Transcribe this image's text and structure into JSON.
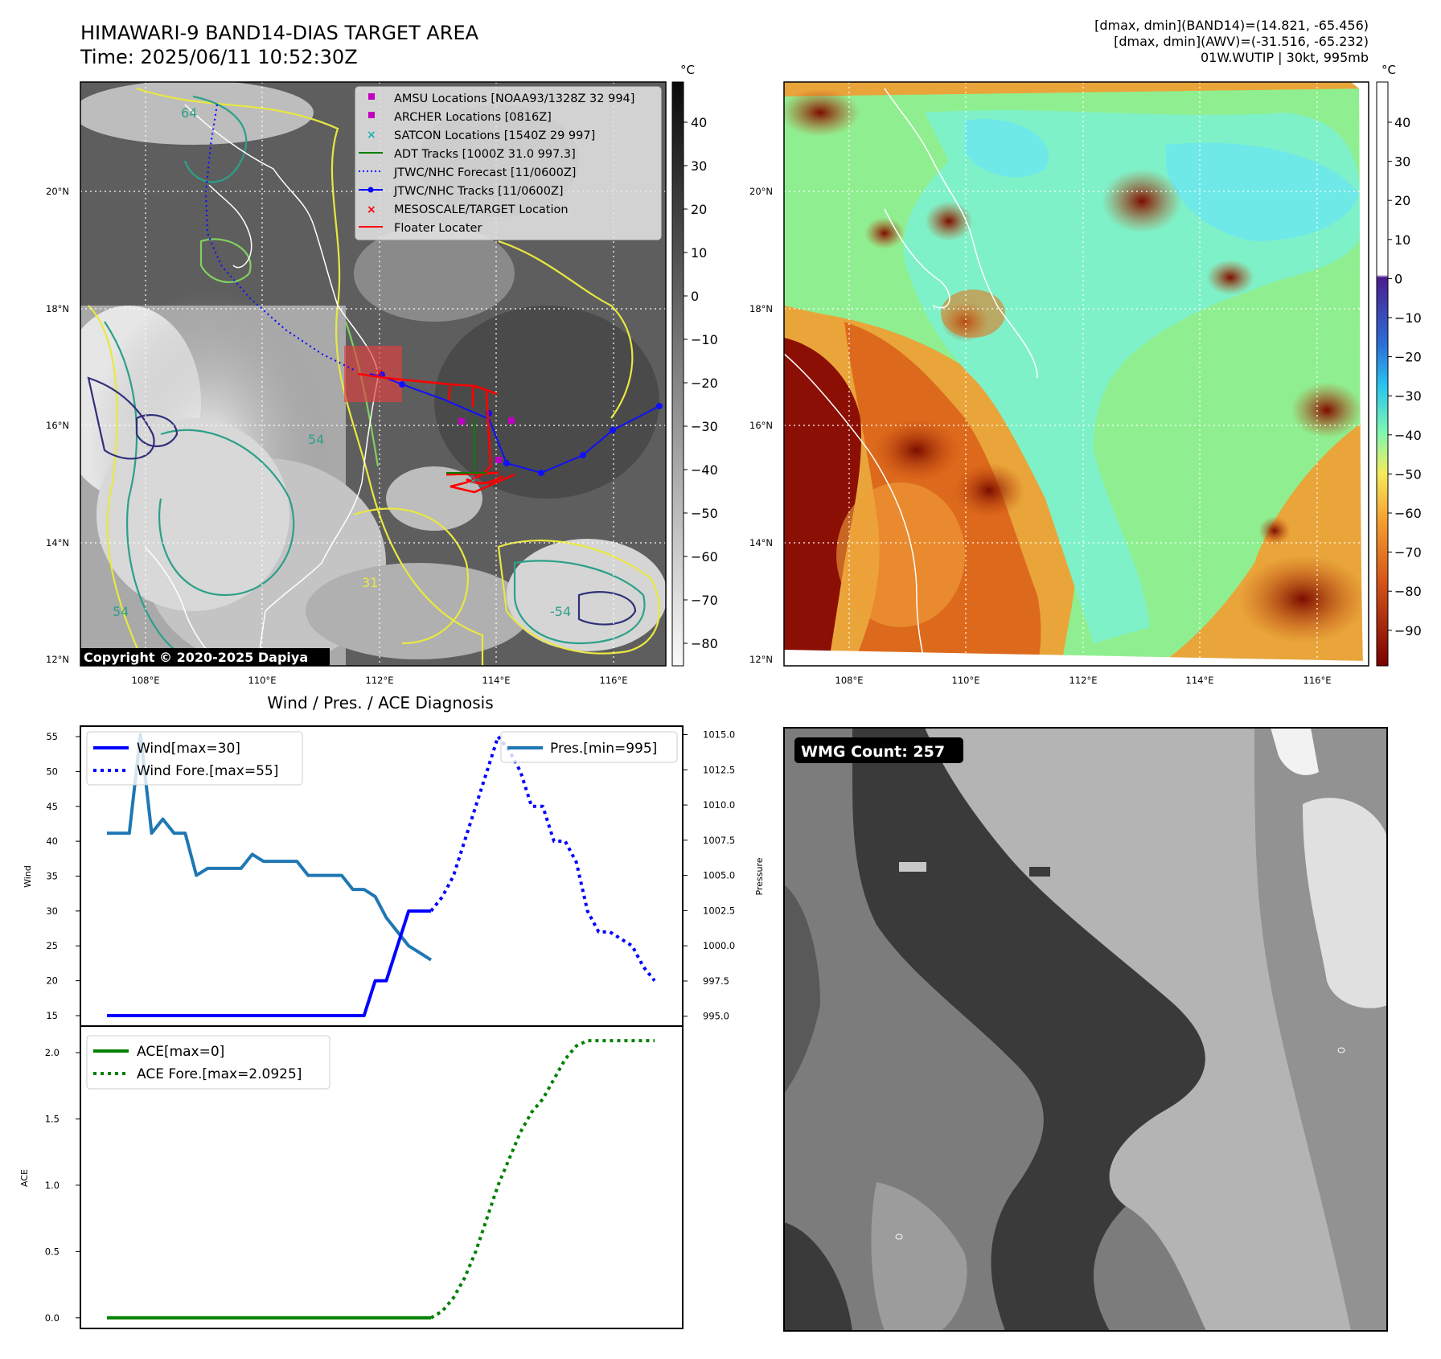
{
  "header": {
    "title_line1": "HIMAWARI-9 BAND14-DIAS TARGET AREA",
    "title_line2": "Time: 2025/06/11 10:52:30Z",
    "info_line1": "[dmax, dmin](BAND14)=(14.821, -65.456)",
    "info_line2": "[dmax, dmin](AWV)=(-31.516, -65.232)",
    "info_line3": "01W.WUTIP | 30kt, 995mb"
  },
  "map_left": {
    "lat_labels": [
      "20°N",
      "18°N",
      "16°N",
      "14°N",
      "12°N"
    ],
    "lon_labels": [
      "108°E",
      "110°E",
      "112°E",
      "114°E",
      "116°E"
    ],
    "copyright": "Copyright © 2020-2025 Dapiya",
    "contour_labels": [
      "64",
      "54",
      "31",
      "-54",
      "54"
    ],
    "legend": [
      {
        "label": "AMSU Locations [NOAA93/1328Z 32 994]",
        "color": "#c000c0",
        "marker": "square"
      },
      {
        "label": "ARCHER Locations [0816Z]",
        "color": "#c000c0",
        "marker": "square"
      },
      {
        "label": "SATCON Locations [1540Z 29 997]",
        "color": "#20b0b0",
        "marker": "x"
      },
      {
        "label": "ADT Tracks [1000Z 31.0 997.3]",
        "color": "#008000",
        "marker": "line"
      },
      {
        "label": "JTWC/NHC Forecast [11/0600Z]",
        "color": "#0000ff",
        "marker": "dotted"
      },
      {
        "label": "JTWC/NHC Tracks [11/0600Z]",
        "color": "#0000ff",
        "marker": "line-dot"
      },
      {
        "label": "MESOSCALE/TARGET Location",
        "color": "#ff0000",
        "marker": "x"
      },
      {
        "label": "Floater Locater",
        "color": "#ff0000",
        "marker": "line"
      }
    ],
    "colorbar_unit": "°C",
    "colorbar_ticks": [
      "40",
      "30",
      "20",
      "10",
      "0",
      "−10",
      "−20",
      "−30",
      "−40",
      "−50",
      "−60",
      "−70",
      "−80"
    ]
  },
  "map_right": {
    "lat_labels": [
      "20°N",
      "18°N",
      "16°N",
      "14°N",
      "12°N"
    ],
    "lon_labels": [
      "108°E",
      "110°E",
      "112°E",
      "114°E",
      "116°E"
    ],
    "colorbar_unit": "°C",
    "colorbar_ticks": [
      "40",
      "30",
      "20",
      "10",
      "0",
      "−10",
      "−20",
      "−30",
      "−40",
      "−50",
      "−60",
      "−70",
      "−80",
      "−90"
    ]
  },
  "wmg": {
    "label": "WMG Count: 257"
  },
  "chart_data": [
    {
      "type": "line",
      "title": "Wind / Pres. / ACE Diagnosis",
      "ylabel": "Wind",
      "ylabel_right": "Pressure",
      "ylim": [
        13.5,
        56.5
      ],
      "yticks": [
        15,
        20,
        25,
        30,
        35,
        40,
        45,
        50,
        55
      ],
      "ylim_right": [
        994.3,
        1015.6
      ],
      "yticks_right": [
        "995.0",
        "997.5",
        "1000.0",
        "1002.5",
        "1005.0",
        "1007.5",
        "1010.0",
        "1012.5",
        "1015.0"
      ],
      "x": [
        0,
        50
      ],
      "legend_left": [
        "Wind[max=30]",
        "Wind Fore.[max=55]"
      ],
      "legend_right": [
        "Pres.[min=995]"
      ],
      "series": [
        {
          "name": "Wind[max=30]",
          "color": "#0000ff",
          "style": "solid",
          "x": [
            0,
            1,
            2,
            3,
            4,
            5,
            6,
            7,
            8,
            9,
            10,
            11,
            12,
            13,
            14,
            15,
            16,
            17,
            18,
            19,
            20,
            21,
            22,
            23,
            24,
            25,
            26,
            27,
            28,
            29
          ],
          "values": [
            15,
            15,
            15,
            15,
            15,
            15,
            15,
            15,
            15,
            15,
            15,
            15,
            15,
            15,
            15,
            15,
            15,
            15,
            15,
            15,
            15,
            15,
            15,
            15,
            20,
            20,
            25,
            30,
            30,
            30
          ]
        },
        {
          "name": "Wind Fore.[max=55]",
          "color": "#0000ff",
          "style": "dotted",
          "x": [
            29,
            30,
            31,
            32,
            33,
            34,
            35,
            36,
            37,
            38,
            39,
            40,
            41,
            42,
            43,
            44,
            45,
            46,
            47,
            48,
            49
          ],
          "values": [
            30,
            32,
            35,
            40,
            45,
            50,
            55,
            53,
            50,
            45,
            45,
            40,
            40,
            37,
            30,
            27,
            27,
            26,
            25,
            22,
            20
          ]
        },
        {
          "name": "Pres.[min=995]",
          "color": "#1f77b4",
          "style": "solid",
          "axis": "right",
          "x": [
            0,
            1,
            2,
            3,
            4,
            5,
            6,
            7,
            8,
            9,
            10,
            11,
            12,
            13,
            14,
            15,
            16,
            17,
            18,
            19,
            20,
            21,
            22,
            23,
            24,
            25,
            26,
            27,
            28,
            29
          ],
          "values": [
            1008,
            1008,
            1008,
            1015,
            1008,
            1009,
            1008,
            1008,
            1005,
            1005.5,
            1005.5,
            1005.5,
            1005.5,
            1006.5,
            1006,
            1006,
            1006,
            1006,
            1005,
            1005,
            1005,
            1005,
            1004,
            1004,
            1003.5,
            1002,
            1001,
            1000,
            999.5,
            999
          ]
        }
      ]
    },
    {
      "type": "line",
      "ylabel": "ACE",
      "ylim": [
        -0.08,
        2.2
      ],
      "yticks": [
        "0.0",
        "0.5",
        "1.0",
        "1.5",
        "2.0"
      ],
      "series": [
        {
          "name": "ACE[max=0]",
          "color": "#008000",
          "style": "solid",
          "x": [
            0,
            29
          ],
          "values": [
            0,
            0
          ]
        },
        {
          "name": "ACE Fore.[max=2.0925]",
          "color": "#008000",
          "style": "dotted",
          "x": [
            29,
            30,
            31,
            32,
            33,
            34,
            35,
            36,
            37,
            38,
            39,
            40,
            41,
            42,
            43,
            44,
            45,
            46,
            47,
            48,
            49
          ],
          "values": [
            0,
            0.05,
            0.15,
            0.3,
            0.5,
            0.75,
            1.0,
            1.2,
            1.4,
            1.55,
            1.65,
            1.8,
            1.95,
            2.05,
            2.09,
            2.09,
            2.09,
            2.09,
            2.09,
            2.09,
            2.09
          ]
        }
      ]
    }
  ]
}
